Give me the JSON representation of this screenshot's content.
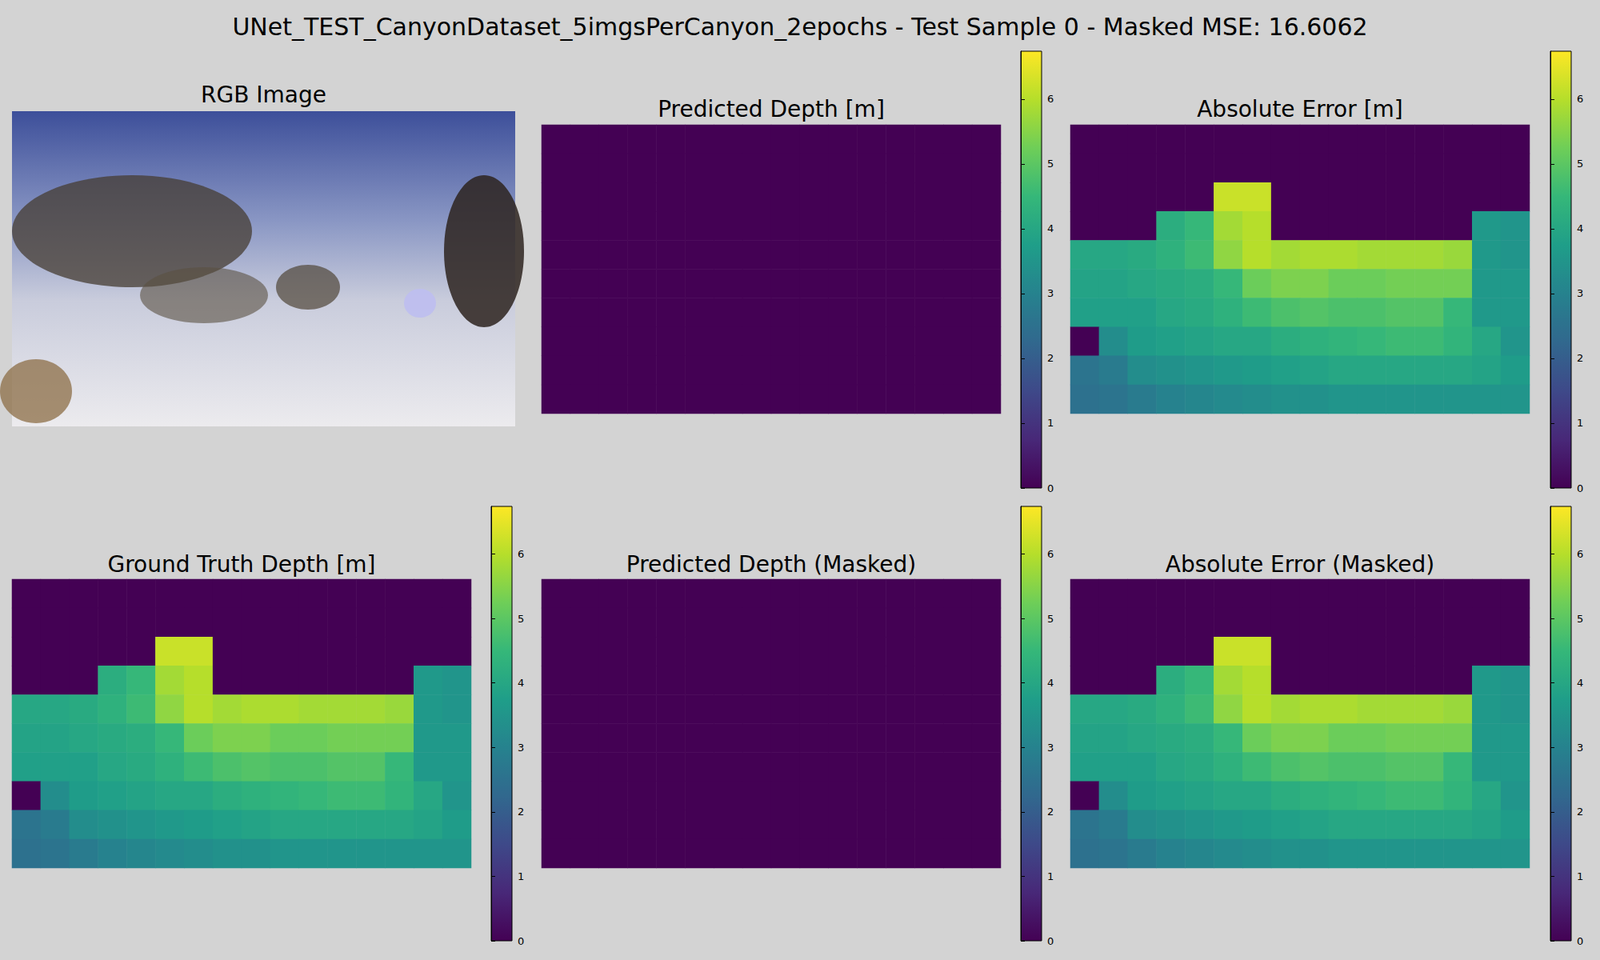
{
  "title": "UNet_TEST_CanyonDataset_5imgsPerCanyon_2epochs - Test Sample 0 - Masked MSE: 16.6062",
  "chart_data": [
    {
      "type": "image",
      "title": "RGB Image"
    },
    {
      "type": "heatmap",
      "title": "Predicted Depth [m]",
      "colorbar": {
        "range": [
          0,
          6.74
        ],
        "ticks": [
          0,
          1,
          2,
          3,
          4,
          5,
          6
        ]
      },
      "cells": [
        [
          0,
          0,
          0,
          0,
          0,
          0,
          0,
          0,
          0,
          0,
          0,
          0,
          0,
          0,
          0,
          0
        ],
        [
          0,
          0,
          0,
          0,
          0,
          0,
          0,
          0,
          0,
          0,
          0,
          0,
          0,
          0,
          0,
          0
        ],
        [
          0,
          0,
          0,
          0,
          0,
          0,
          0,
          0,
          0,
          0,
          0,
          0,
          0,
          0,
          0,
          0
        ],
        [
          0,
          0,
          0,
          0,
          0,
          0,
          0,
          0,
          0,
          0,
          0,
          0,
          0,
          0,
          0,
          0
        ],
        [
          0,
          0,
          0,
          0,
          0,
          0,
          0,
          0,
          0,
          0,
          0,
          0,
          0,
          0,
          0,
          0
        ],
        [
          0,
          0,
          0,
          0,
          0,
          0,
          0,
          0,
          0,
          0,
          0,
          0,
          0,
          0,
          0,
          0
        ],
        [
          0,
          0,
          0,
          0,
          0,
          0,
          0,
          0,
          0,
          0,
          0,
          0,
          0,
          0,
          0,
          0
        ],
        [
          0,
          0,
          0,
          0,
          0,
          0,
          0,
          0,
          0,
          0,
          0,
          0,
          0,
          0,
          0,
          0
        ],
        [
          0,
          0,
          0,
          0,
          0,
          0,
          0,
          0,
          0,
          0,
          0,
          0,
          0,
          0,
          0,
          0
        ],
        [
          0,
          0,
          0,
          0,
          0,
          0,
          0,
          0,
          0,
          0,
          0,
          0,
          0,
          0,
          0,
          0
        ]
      ]
    },
    {
      "type": "heatmap",
      "title": "Absolute Error [m]",
      "colorbar": {
        "range": [
          0,
          6.74
        ],
        "ticks": [
          0,
          1,
          2,
          3,
          4,
          5,
          6
        ]
      },
      "cells": [
        [
          0,
          0,
          0,
          0,
          0,
          0,
          0,
          0,
          0,
          0,
          0,
          0,
          0,
          0,
          0,
          0
        ],
        [
          0,
          0,
          0,
          0,
          0,
          0,
          0,
          0,
          0,
          0,
          0,
          0,
          0,
          0,
          0,
          0
        ],
        [
          0,
          0,
          0,
          0,
          0,
          6.2,
          6.2,
          0,
          0,
          0,
          0,
          0,
          0,
          0,
          0,
          0
        ],
        [
          0,
          0,
          0,
          4.2,
          4.5,
          5.8,
          6.0,
          0,
          0,
          0,
          0,
          0,
          0,
          0,
          3.6,
          3.5
        ],
        [
          4.0,
          4.0,
          4.1,
          4.3,
          4.6,
          5.6,
          6.0,
          5.8,
          5.9,
          5.9,
          5.8,
          5.8,
          5.8,
          5.7,
          3.6,
          3.5
        ],
        [
          3.9,
          3.9,
          4.0,
          4.1,
          4.2,
          4.5,
          5.2,
          5.4,
          5.4,
          5.2,
          5.2,
          5.3,
          5.3,
          5.3,
          3.6,
          3.6
        ],
        [
          3.8,
          3.8,
          3.8,
          4.0,
          4.1,
          4.3,
          4.6,
          4.8,
          4.9,
          4.8,
          4.8,
          4.9,
          4.9,
          4.5,
          3.6,
          3.6
        ],
        [
          0,
          3.3,
          3.7,
          3.8,
          3.9,
          4.0,
          4.0,
          4.2,
          4.3,
          4.4,
          4.5,
          4.6,
          4.6,
          4.4,
          4.0,
          3.5
        ],
        [
          2.6,
          2.8,
          3.3,
          3.4,
          3.5,
          3.6,
          3.7,
          3.8,
          3.9,
          4.0,
          4.0,
          4.0,
          4.0,
          4.0,
          3.9,
          3.7
        ],
        [
          2.5,
          2.6,
          2.8,
          3.0,
          3.1,
          3.2,
          3.3,
          3.4,
          3.4,
          3.5,
          3.5,
          3.5,
          3.5,
          3.5,
          3.5,
          3.5
        ]
      ]
    },
    {
      "type": "heatmap",
      "title": "Ground Truth Depth [m]",
      "colorbar": {
        "range": [
          0,
          6.74
        ],
        "ticks": [
          0,
          1,
          2,
          3,
          4,
          5,
          6
        ]
      },
      "cells": [
        [
          0,
          0,
          0,
          0,
          0,
          0,
          0,
          0,
          0,
          0,
          0,
          0,
          0,
          0,
          0,
          0
        ],
        [
          0,
          0,
          0,
          0,
          0,
          0,
          0,
          0,
          0,
          0,
          0,
          0,
          0,
          0,
          0,
          0
        ],
        [
          0,
          0,
          0,
          0,
          0,
          6.2,
          6.2,
          0,
          0,
          0,
          0,
          0,
          0,
          0,
          0,
          0
        ],
        [
          0,
          0,
          0,
          4.2,
          4.5,
          5.8,
          6.0,
          0,
          0,
          0,
          0,
          0,
          0,
          0,
          3.6,
          3.5
        ],
        [
          4.0,
          4.0,
          4.1,
          4.3,
          4.6,
          5.6,
          6.0,
          5.8,
          5.9,
          5.9,
          5.8,
          5.8,
          5.8,
          5.7,
          3.6,
          3.5
        ],
        [
          3.9,
          3.9,
          4.0,
          4.1,
          4.2,
          4.5,
          5.2,
          5.4,
          5.4,
          5.2,
          5.2,
          5.3,
          5.3,
          5.3,
          3.6,
          3.6
        ],
        [
          3.8,
          3.8,
          3.8,
          4.0,
          4.1,
          4.3,
          4.6,
          4.8,
          4.9,
          4.8,
          4.8,
          4.9,
          4.9,
          4.5,
          3.6,
          3.6
        ],
        [
          0,
          3.3,
          3.7,
          3.8,
          3.9,
          4.0,
          4.0,
          4.2,
          4.3,
          4.4,
          4.5,
          4.6,
          4.6,
          4.4,
          4.0,
          3.5
        ],
        [
          2.6,
          2.8,
          3.3,
          3.4,
          3.5,
          3.6,
          3.7,
          3.8,
          3.9,
          4.0,
          4.0,
          4.0,
          4.0,
          4.0,
          3.9,
          3.7
        ],
        [
          2.5,
          2.6,
          2.8,
          3.0,
          3.1,
          3.2,
          3.3,
          3.4,
          3.4,
          3.5,
          3.5,
          3.5,
          3.5,
          3.5,
          3.5,
          3.5
        ]
      ]
    },
    {
      "type": "heatmap",
      "title": "Predicted Depth (Masked)",
      "colorbar": {
        "range": [
          0,
          6.74
        ],
        "ticks": [
          0,
          1,
          2,
          3,
          4,
          5,
          6
        ]
      },
      "cells": [
        [
          0,
          0,
          0,
          0,
          0,
          0,
          0,
          0,
          0,
          0,
          0,
          0,
          0,
          0,
          0,
          0
        ],
        [
          0,
          0,
          0,
          0,
          0,
          0,
          0,
          0,
          0,
          0,
          0,
          0,
          0,
          0,
          0,
          0
        ],
        [
          0,
          0,
          0,
          0,
          0,
          0,
          0,
          0,
          0,
          0,
          0,
          0,
          0,
          0,
          0,
          0
        ],
        [
          0,
          0,
          0,
          0,
          0,
          0,
          0,
          0,
          0,
          0,
          0,
          0,
          0,
          0,
          0,
          0
        ],
        [
          0,
          0,
          0,
          0,
          0,
          0,
          0,
          0,
          0,
          0,
          0,
          0,
          0,
          0,
          0,
          0
        ],
        [
          0,
          0,
          0,
          0,
          0,
          0,
          0,
          0,
          0,
          0,
          0,
          0,
          0,
          0,
          0,
          0
        ],
        [
          0,
          0,
          0,
          0,
          0,
          0,
          0,
          0,
          0,
          0,
          0,
          0,
          0,
          0,
          0,
          0
        ],
        [
          0,
          0,
          0,
          0,
          0,
          0,
          0,
          0,
          0,
          0,
          0,
          0,
          0,
          0,
          0,
          0
        ],
        [
          0,
          0,
          0,
          0,
          0,
          0,
          0,
          0,
          0,
          0,
          0,
          0,
          0,
          0,
          0,
          0
        ],
        [
          0,
          0,
          0,
          0,
          0,
          0,
          0,
          0,
          0,
          0,
          0,
          0,
          0,
          0,
          0,
          0
        ]
      ]
    },
    {
      "type": "heatmap",
      "title": "Absolute Error (Masked)",
      "colorbar": {
        "range": [
          0,
          6.74
        ],
        "ticks": [
          0,
          1,
          2,
          3,
          4,
          5,
          6
        ]
      },
      "cells": [
        [
          0,
          0,
          0,
          0,
          0,
          0,
          0,
          0,
          0,
          0,
          0,
          0,
          0,
          0,
          0,
          0
        ],
        [
          0,
          0,
          0,
          0,
          0,
          0,
          0,
          0,
          0,
          0,
          0,
          0,
          0,
          0,
          0,
          0
        ],
        [
          0,
          0,
          0,
          0,
          0,
          6.2,
          6.2,
          0,
          0,
          0,
          0,
          0,
          0,
          0,
          0,
          0
        ],
        [
          0,
          0,
          0,
          4.2,
          4.5,
          5.8,
          6.0,
          0,
          0,
          0,
          0,
          0,
          0,
          0,
          3.6,
          3.5
        ],
        [
          4.0,
          4.0,
          4.1,
          4.3,
          4.6,
          5.6,
          6.0,
          5.8,
          5.9,
          5.9,
          5.8,
          5.8,
          5.8,
          5.7,
          3.6,
          3.5
        ],
        [
          3.9,
          3.9,
          4.0,
          4.1,
          4.2,
          4.5,
          5.2,
          5.4,
          5.4,
          5.2,
          5.2,
          5.3,
          5.3,
          5.3,
          3.6,
          3.6
        ],
        [
          3.8,
          3.8,
          3.8,
          4.0,
          4.1,
          4.3,
          4.6,
          4.8,
          4.9,
          4.8,
          4.8,
          4.9,
          4.9,
          4.5,
          3.6,
          3.6
        ],
        [
          0,
          3.3,
          3.7,
          3.8,
          3.9,
          4.0,
          4.0,
          4.2,
          4.3,
          4.4,
          4.5,
          4.6,
          4.6,
          4.4,
          4.0,
          3.5
        ],
        [
          2.6,
          2.8,
          3.3,
          3.4,
          3.5,
          3.6,
          3.7,
          3.8,
          3.9,
          4.0,
          4.0,
          4.0,
          4.0,
          4.0,
          3.9,
          3.7
        ],
        [
          2.5,
          2.6,
          2.8,
          3.0,
          3.1,
          3.2,
          3.3,
          3.4,
          3.4,
          3.5,
          3.5,
          3.5,
          3.5,
          3.5,
          3.5,
          3.5
        ]
      ]
    }
  ]
}
